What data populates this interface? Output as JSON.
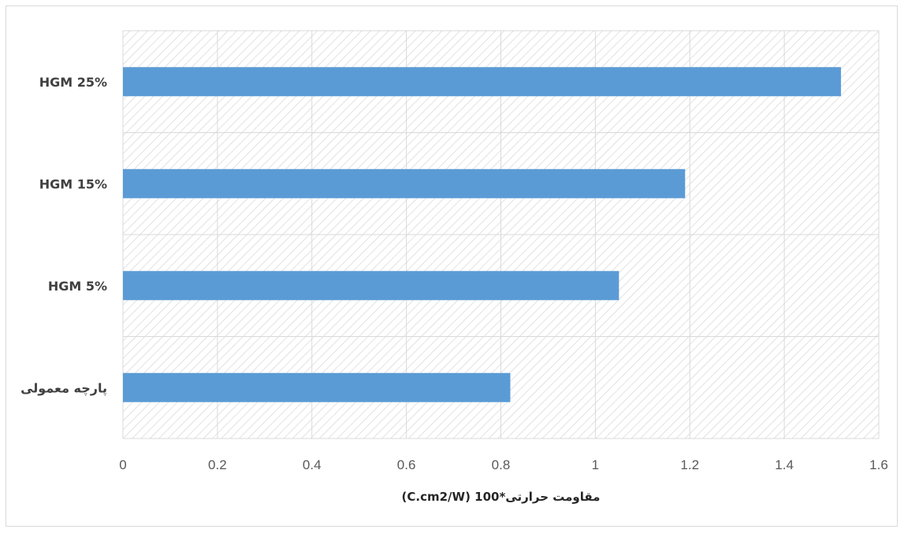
{
  "chart_data": {
    "type": "bar",
    "orientation": "horizontal",
    "categories": [
      "HGM 25%",
      "HGM 15%",
      "HGM 5%",
      "پارچه معمولی"
    ],
    "values": [
      1.52,
      1.19,
      1.05,
      0.82
    ],
    "xlim": [
      0,
      1.6
    ],
    "xticks": [
      "0",
      "0.2",
      "0.4",
      "0.6",
      "0.8",
      "1",
      "1.2",
      "1.4",
      "1.6"
    ],
    "xlabel": "مقاومت حرارتی*100 (C.cm2/W)",
    "ylabel": "",
    "title": "",
    "grid": true,
    "plot_area_pattern": "diagonal-hatch",
    "bar_color": "#5b9bd5",
    "grid_color": "#d9d9d9",
    "hatch_color": "#d0d0d0"
  }
}
